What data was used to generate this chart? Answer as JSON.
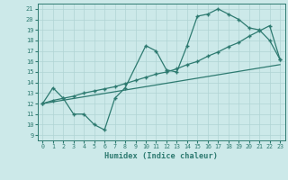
{
  "xlabel": "Humidex (Indice chaleur)",
  "xlim": [
    -0.5,
    23.5
  ],
  "ylim": [
    8.5,
    21.5
  ],
  "xticks": [
    0,
    1,
    2,
    3,
    4,
    5,
    6,
    7,
    8,
    9,
    10,
    11,
    12,
    13,
    14,
    15,
    16,
    17,
    18,
    19,
    20,
    21,
    22,
    23
  ],
  "yticks": [
    9,
    10,
    11,
    12,
    13,
    14,
    15,
    16,
    17,
    18,
    19,
    20,
    21
  ],
  "bg_color": "#cce9e9",
  "grid_color": "#b0d4d4",
  "line_color": "#2d7a70",
  "line1_x": [
    0,
    1,
    2,
    3,
    4,
    5,
    6,
    7,
    8,
    10,
    11,
    12,
    13,
    14,
    15,
    16,
    17,
    18,
    19,
    20,
    21,
    22,
    23
  ],
  "line1_y": [
    12,
    13.5,
    12.5,
    11,
    11,
    10,
    9.5,
    12.5,
    13.5,
    17.5,
    17,
    15.2,
    15,
    17.5,
    20.3,
    20.5,
    21,
    20.5,
    20,
    19.2,
    19,
    18,
    16.2
  ],
  "line2_x": [
    0,
    1,
    2,
    3,
    4,
    5,
    6,
    7,
    8,
    9,
    10,
    11,
    12,
    13,
    14,
    15,
    16,
    17,
    18,
    19,
    20,
    21,
    22,
    23
  ],
  "line2_y": [
    12,
    12.3,
    12.5,
    12.7,
    13.0,
    13.2,
    13.4,
    13.6,
    13.9,
    14.2,
    14.5,
    14.8,
    15.0,
    15.3,
    15.7,
    16.0,
    16.5,
    16.9,
    17.4,
    17.8,
    18.4,
    18.9,
    19.4,
    16.2
  ],
  "line3_x": [
    0,
    23
  ],
  "line3_y": [
    12,
    15.7
  ],
  "markersize": 3,
  "linewidth": 0.9
}
